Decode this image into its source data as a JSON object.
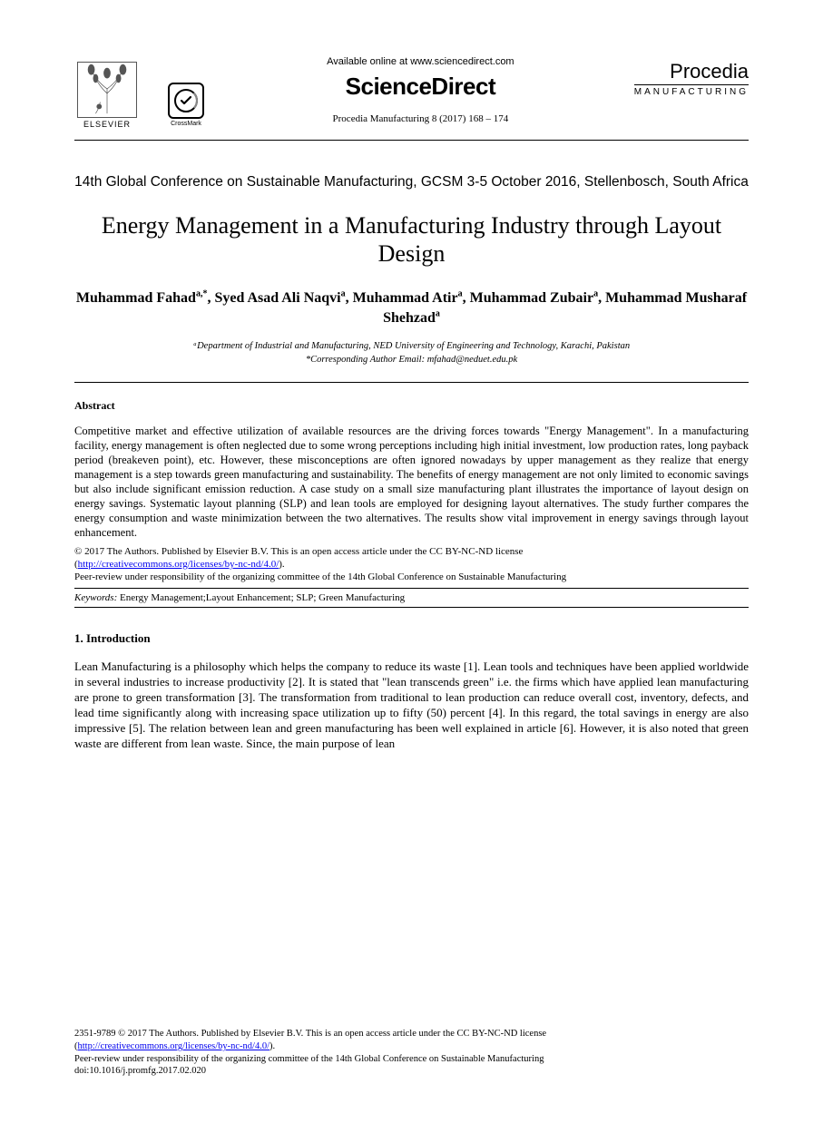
{
  "header": {
    "elsevier_label": "ELSEVIER",
    "crossmark_label": "CrossMark",
    "available_text": "Available online at www.sciencedirect.com",
    "sciencedirect": "ScienceDirect",
    "citation": "Procedia Manufacturing 8 (2017) 168 – 174",
    "procedia_main": "Procedia",
    "procedia_sub": "MANUFACTURING"
  },
  "conference": "14th Global Conference on Sustainable Manufacturing, GCSM 3-5 October 2016, Stellenbosch, South Africa",
  "title": "Energy Management in a Manufacturing Industry through Layout Design",
  "authors_html": "Muhammad Fahad<sup>a,*</sup>, Syed Asad Ali Naqvi<sup>a</sup>, Muhammad Atir<sup>a</sup>, Muhammad Zubair<sup>a</sup>, Muhammad Musharaf Shehzad<sup>a</sup>",
  "affiliation": {
    "line1": "ᵃDepartment of Industrial and Manufacturing, NED University of Engineering and Technology, Karachi, Pakistan",
    "line2": "*Corresponding Author Email: mfahad@neduet.edu.pk"
  },
  "abstract": {
    "heading": "Abstract",
    "text": "Competitive market and effective utilization of available resources are the driving forces towards \"Energy Management\". In a manufacturing facility, energy management is often neglected due to some wrong perceptions including high initial investment, low production rates, long payback period (breakeven point), etc. However, these misconceptions are often ignored nowadays by upper management as they realize that energy management is a step towards green manufacturing and sustainability. The benefits of energy management are not only limited to economic savings but also include significant emission reduction. A case study on a small size manufacturing plant illustrates the importance of layout design on energy savings. Systematic layout planning (SLP) and lean tools are employed for designing layout alternatives. The study further compares the energy consumption and waste minimization between the two alternatives. The results show vital improvement in energy savings through layout enhancement."
  },
  "copyright": {
    "line1": "© 2017 The Authors. Published by Elsevier B.V. This is an open access article under the CC BY-NC-ND license",
    "license_url": "http://creativecommons.org/licenses/by-nc-nd/4.0/",
    "line2": "Peer-review under responsibility of the organizing committee of the 14th Global Conference on Sustainable Manufacturing"
  },
  "keywords": {
    "label": "Keywords:",
    "text": " Energy Management;Layout Enhancement; SLP; Green Manufacturing"
  },
  "section1": {
    "heading": "1. Introduction",
    "text": "Lean Manufacturing is a philosophy which helps the company to reduce its waste [1]. Lean tools and techniques have been applied worldwide in several industries to increase productivity [2]. It is stated that \"lean transcends green\" i.e. the firms which have applied lean manufacturing are prone to green transformation [3]. The transformation from traditional to lean production can reduce overall cost, inventory, defects, and lead time significantly along with increasing space utilization up to fifty (50) percent [4]. In this regard, the total savings in energy are also impressive [5]. The relation between lean and green manufacturing has been well explained in article [6]. However, it is also noted that green waste are different from lean waste. Since, the main purpose of lean"
  },
  "footer": {
    "issn_line": "2351-9789 © 2017 The Authors. Published by Elsevier B.V. This is an open access article under the CC BY-NC-ND license",
    "license_url": "http://creativecommons.org/licenses/by-nc-nd/4.0/",
    "peer_review": "Peer-review under responsibility of the organizing committee of the 14th Global Conference on Sustainable Manufacturing",
    "doi": "doi:10.1016/j.promfg.2017.02.020"
  },
  "colors": {
    "text": "#000000",
    "link": "#0000ee",
    "background": "#ffffff",
    "rule": "#000000"
  },
  "typography": {
    "title_fontsize": 26,
    "authors_fontsize": 16,
    "body_fontsize": 13,
    "abstract_fontsize": 12.5,
    "footer_fontsize": 10.5,
    "conference_fontsize": 15.5
  }
}
